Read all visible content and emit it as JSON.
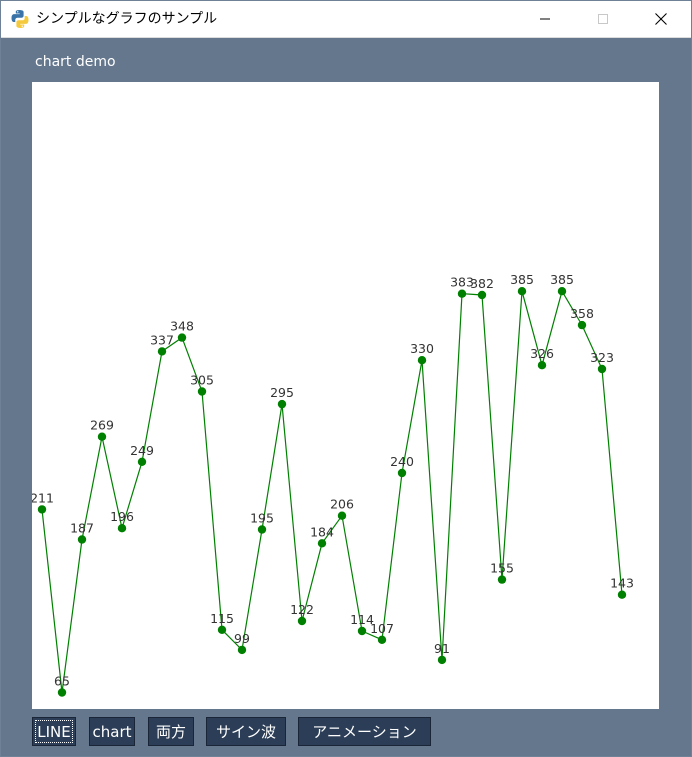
{
  "window": {
    "title": "シンプルなグラフのサンプル",
    "icon": "python-icon",
    "controls": [
      "minimize-icon",
      "maximize-icon",
      "close-icon"
    ]
  },
  "chart_caption": "chart demo",
  "chart_data": {
    "type": "line",
    "x": [
      1,
      2,
      3,
      4,
      5,
      6,
      7,
      8,
      9,
      10,
      11,
      12,
      13,
      14,
      15,
      16,
      17,
      18,
      19,
      20,
      21,
      22,
      23,
      24,
      25,
      26,
      27,
      28,
      29,
      30
    ],
    "values": [
      211,
      65,
      187,
      269,
      196,
      249,
      337,
      348,
      305,
      115,
      99,
      195,
      295,
      122,
      184,
      206,
      114,
      107,
      240,
      330,
      91,
      383,
      382,
      155,
      385,
      326,
      385,
      358,
      323,
      143
    ],
    "value_labels": [
      "211",
      "65",
      "187",
      "269",
      "196",
      "249",
      "337",
      "348",
      "305",
      "115",
      "99",
      "195",
      "295",
      "122",
      "184",
      "206",
      "114",
      "107",
      "240",
      "330",
      "91",
      "383",
      "382",
      "155",
      "385",
      "326",
      "385",
      "358",
      "323",
      "143"
    ],
    "ylim": [
      0,
      500
    ],
    "grid": false,
    "line_color": "#008000",
    "marker_color": "#008000",
    "label_color": "#333333"
  },
  "buttons": [
    {
      "label": "LINE",
      "focused": true
    },
    {
      "label": "chart",
      "focused": false
    },
    {
      "label": "両方",
      "focused": false
    },
    {
      "label": "サイン波",
      "focused": false
    },
    {
      "label": "アニメーション",
      "focused": false
    }
  ],
  "colors": {
    "client_bg": "#64778d",
    "button_bg": "#2b3d57",
    "button_text": "#ffffff"
  }
}
